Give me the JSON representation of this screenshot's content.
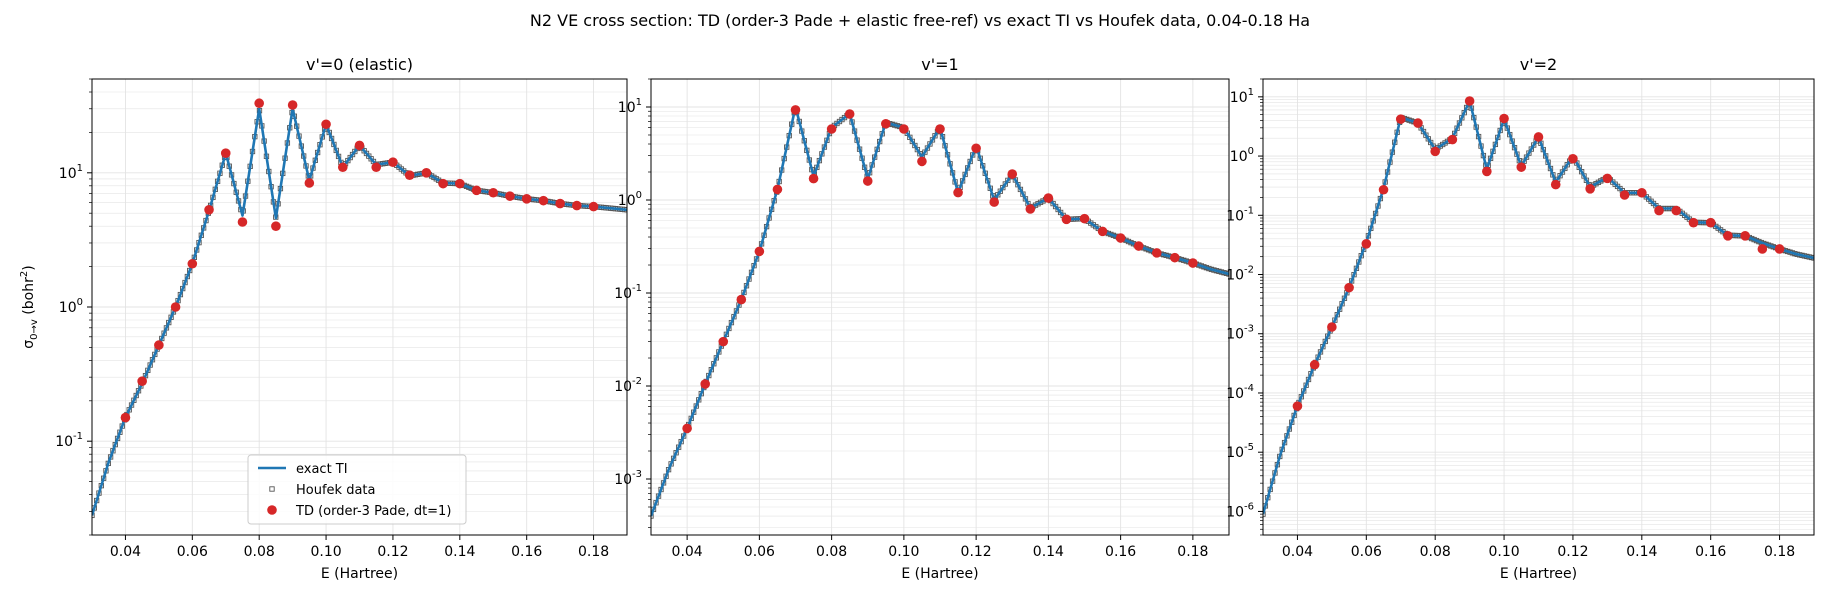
{
  "figure": {
    "suptitle": "N2 VE cross section: TD (order-3 Pade + elastic free-ref) vs exact TI vs Houfek data, 0.04-0.18 Ha"
  },
  "colors": {
    "exact": "#1f77b4",
    "houfek": "#555555",
    "td": "#d62728",
    "grid": "#e3e3e3"
  },
  "legend": {
    "exact_label": "exact TI",
    "houfek_label": "Houfek data",
    "td_label": "TD (order-3 Pade, dt=1)",
    "location": "lower-center-left",
    "in_panel": 0
  },
  "chart_data": [
    {
      "type": "line",
      "title": "v'=0 (elastic)",
      "xlabel": "E (Hartree)",
      "ylabel_main": "σ",
      "ylabel_sub": "0→v",
      "ylabel_unit": " (bohr",
      "ylabel_unit_sup": "2",
      "ylabel_close": ")",
      "xlim": [
        0.03,
        0.19
      ],
      "ylim": [
        0.02,
        50
      ],
      "yscale": "log",
      "grid": true,
      "xticks": [
        0.04,
        0.06,
        0.08,
        0.1,
        0.12,
        0.14,
        0.16,
        0.18
      ],
      "xtick_labels": [
        "0.04",
        "0.06",
        "0.08",
        "0.10",
        "0.12",
        "0.14",
        "0.16",
        "0.18"
      ],
      "ytick_exps": [
        "-1",
        "0",
        "1"
      ],
      "series": [
        {
          "name": "exact TI",
          "x": [
            0.03,
            0.035,
            0.04,
            0.045,
            0.05,
            0.055,
            0.06,
            0.065,
            0.07,
            0.075,
            0.08,
            0.085,
            0.09,
            0.095,
            0.1,
            0.105,
            0.11,
            0.115,
            0.12,
            0.125,
            0.13,
            0.135,
            0.14,
            0.145,
            0.15,
            0.155,
            0.16,
            0.165,
            0.17,
            0.175,
            0.18,
            0.185,
            0.19
          ],
          "y": [
            0.028,
            0.07,
            0.15,
            0.27,
            0.52,
            1.0,
            2.1,
            5.2,
            14,
            4.8,
            30,
            4.6,
            30,
            8.8,
            23,
            11,
            16,
            11.5,
            12,
            9.5,
            10,
            8.4,
            8.3,
            7.4,
            7.1,
            6.7,
            6.4,
            6.2,
            5.9,
            5.7,
            5.6,
            5.45,
            5.3
          ]
        },
        {
          "name": "TD (order-3 Pade, dt=1)",
          "x": [
            0.04,
            0.045,
            0.05,
            0.055,
            0.06,
            0.065,
            0.07,
            0.075,
            0.08,
            0.085,
            0.09,
            0.095,
            0.1,
            0.105,
            0.11,
            0.115,
            0.12,
            0.125,
            0.13,
            0.135,
            0.14,
            0.145,
            0.15,
            0.155,
            0.16,
            0.165,
            0.17,
            0.175,
            0.18
          ],
          "y": [
            0.15,
            0.28,
            0.52,
            1.0,
            2.1,
            5.3,
            14,
            4.3,
            33,
            4.0,
            32,
            8.4,
            23,
            11,
            16,
            11,
            12,
            9.6,
            10,
            8.3,
            8.3,
            7.4,
            7.1,
            6.7,
            6.4,
            6.2,
            5.9,
            5.7,
            5.6
          ]
        }
      ]
    },
    {
      "type": "line",
      "title": "v'=1",
      "xlabel": "E (Hartree)",
      "xlim": [
        0.03,
        0.19
      ],
      "ylim": [
        0.00025,
        20
      ],
      "yscale": "log",
      "grid": true,
      "xticks": [
        0.04,
        0.06,
        0.08,
        0.1,
        0.12,
        0.14,
        0.16,
        0.18
      ],
      "xtick_labels": [
        "0.04",
        "0.06",
        "0.08",
        "0.10",
        "0.12",
        "0.14",
        "0.16",
        "0.18"
      ],
      "ytick_exps": [
        "-3",
        "-2",
        "-1",
        "0",
        "1"
      ],
      "series": [
        {
          "name": "exact TI",
          "x": [
            0.03,
            0.035,
            0.04,
            0.045,
            0.05,
            0.055,
            0.06,
            0.065,
            0.07,
            0.075,
            0.08,
            0.085,
            0.09,
            0.095,
            0.1,
            0.105,
            0.11,
            0.115,
            0.12,
            0.125,
            0.13,
            0.135,
            0.14,
            0.145,
            0.15,
            0.155,
            0.16,
            0.165,
            0.17,
            0.175,
            0.18,
            0.185,
            0.19
          ],
          "y": [
            0.0004,
            0.0013,
            0.0035,
            0.0105,
            0.03,
            0.085,
            0.28,
            1.3,
            10,
            1.8,
            6,
            8.5,
            1.7,
            6.8,
            6,
            2.9,
            6,
            1.2,
            3.8,
            1.0,
            1.9,
            0.82,
            1.05,
            0.62,
            0.63,
            0.46,
            0.39,
            0.32,
            0.27,
            0.24,
            0.21,
            0.18,
            0.16
          ]
        },
        {
          "name": "TD (order-3 Pade, dt=1)",
          "x": [
            0.04,
            0.045,
            0.05,
            0.055,
            0.06,
            0.065,
            0.07,
            0.075,
            0.08,
            0.085,
            0.09,
            0.095,
            0.1,
            0.105,
            0.11,
            0.115,
            0.12,
            0.125,
            0.13,
            0.135,
            0.14,
            0.145,
            0.15,
            0.155,
            0.16,
            0.165,
            0.17,
            0.175,
            0.18
          ],
          "y": [
            0.0035,
            0.0105,
            0.03,
            0.085,
            0.28,
            1.3,
            9.3,
            1.7,
            5.8,
            8.4,
            1.6,
            6.6,
            5.8,
            2.6,
            5.8,
            1.2,
            3.6,
            0.95,
            1.9,
            0.8,
            1.05,
            0.62,
            0.63,
            0.46,
            0.39,
            0.32,
            0.27,
            0.24,
            0.21
          ]
        }
      ]
    },
    {
      "type": "line",
      "title": "v'=2",
      "xlabel": "E (Hartree)",
      "xlim": [
        0.03,
        0.19
      ],
      "ylim": [
        4e-07,
        20
      ],
      "yscale": "log",
      "grid": true,
      "xticks": [
        0.04,
        0.06,
        0.08,
        0.1,
        0.12,
        0.14,
        0.16,
        0.18
      ],
      "xtick_labels": [
        "0.04",
        "0.06",
        "0.08",
        "0.10",
        "0.12",
        "0.14",
        "0.16",
        "0.18"
      ],
      "ytick_exps": [
        "-6",
        "-5",
        "-4",
        "-3",
        "-2",
        "-1",
        "0",
        "1"
      ],
      "series": [
        {
          "name": "exact TI",
          "x": [
            0.03,
            0.035,
            0.04,
            0.045,
            0.05,
            0.055,
            0.06,
            0.065,
            0.07,
            0.075,
            0.08,
            0.085,
            0.09,
            0.095,
            0.1,
            0.105,
            0.11,
            0.115,
            0.12,
            0.125,
            0.13,
            0.135,
            0.14,
            0.145,
            0.15,
            0.155,
            0.16,
            0.165,
            0.17,
            0.175,
            0.18,
            0.185,
            0.19
          ],
          "y": [
            9e-07,
            9e-06,
            6e-05,
            0.0003,
            0.0013,
            0.006,
            0.035,
            0.28,
            4.5,
            3.6,
            1.3,
            2.0,
            8.5,
            0.6,
            4.2,
            0.68,
            2.1,
            0.36,
            1.0,
            0.3,
            0.44,
            0.24,
            0.24,
            0.13,
            0.13,
            0.076,
            0.075,
            0.046,
            0.045,
            0.034,
            0.027,
            0.022,
            0.019
          ]
        },
        {
          "name": "TD (order-3 Pade, dt=1)",
          "x": [
            0.04,
            0.045,
            0.05,
            0.055,
            0.06,
            0.065,
            0.07,
            0.075,
            0.08,
            0.085,
            0.09,
            0.095,
            0.1,
            0.105,
            0.11,
            0.115,
            0.12,
            0.125,
            0.13,
            0.135,
            0.14,
            0.145,
            0.15,
            0.155,
            0.16,
            0.165,
            0.17,
            0.175,
            0.18
          ],
          "y": [
            6e-05,
            0.0003,
            0.0013,
            0.006,
            0.033,
            0.27,
            4.2,
            3.6,
            1.2,
            1.9,
            8.5,
            0.55,
            4.3,
            0.65,
            2.1,
            0.33,
            0.9,
            0.28,
            0.42,
            0.22,
            0.24,
            0.12,
            0.12,
            0.075,
            0.075,
            0.045,
            0.045,
            0.027,
            0.027
          ]
        }
      ]
    }
  ]
}
